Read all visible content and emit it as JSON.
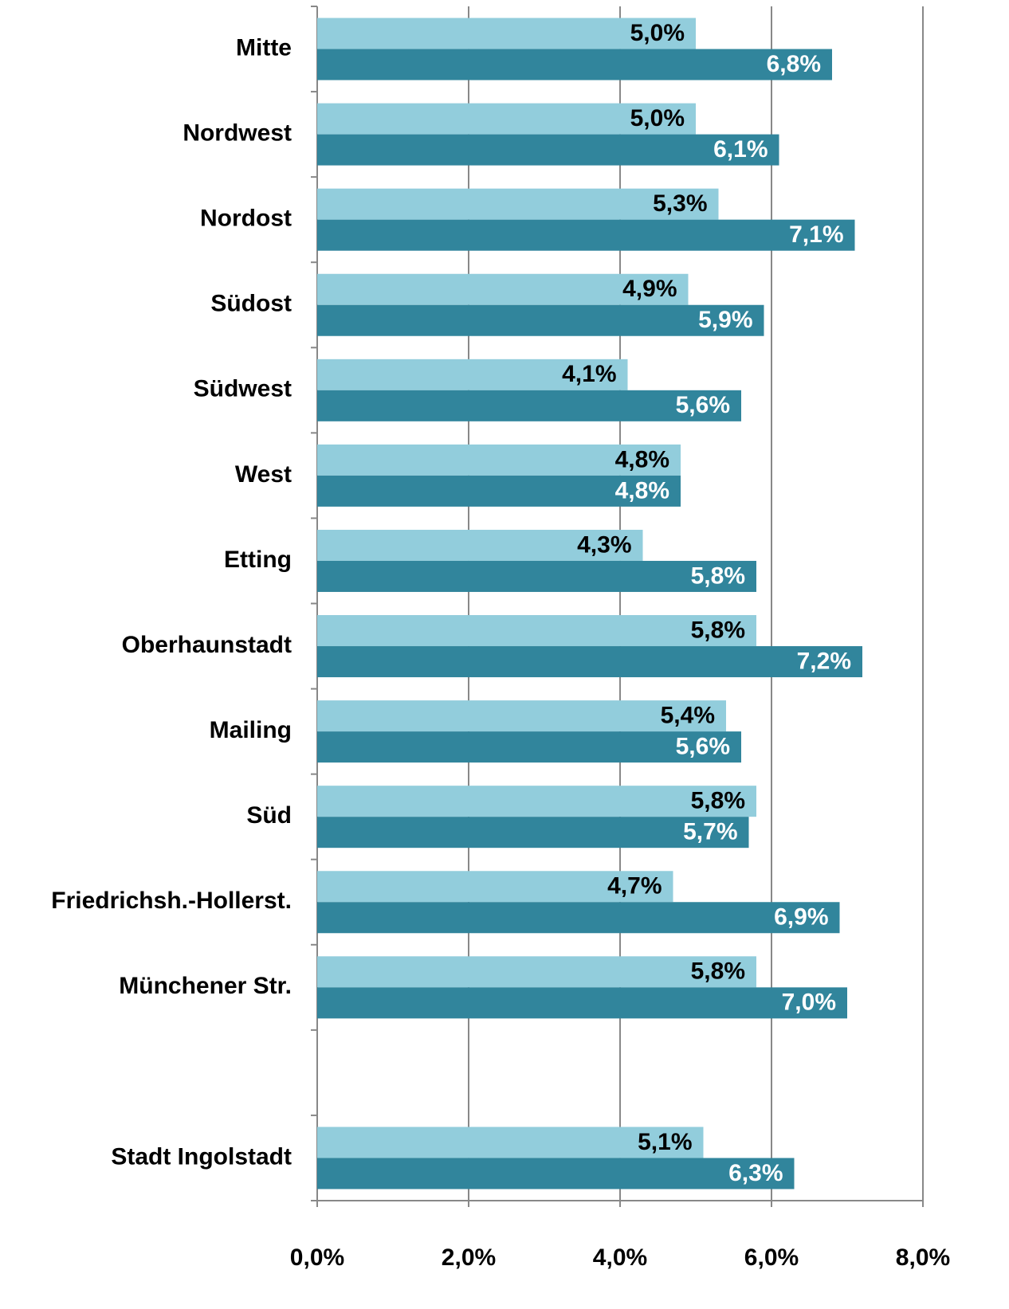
{
  "chart_data": {
    "type": "bar",
    "orientation": "horizontal",
    "categories": [
      "Mitte",
      "Nordwest",
      "Nordost",
      "Südost",
      "Südwest",
      "West",
      "Etting",
      "Oberhaunstadt",
      "Mailing",
      "Süd",
      "Friedrichsh.-Hollerst.",
      "Münchener Str.",
      null,
      "Stadt Ingolstadt"
    ],
    "series": [
      {
        "color": "#92cddc",
        "values": [
          5.0,
          5.0,
          5.3,
          4.9,
          4.1,
          4.8,
          4.3,
          5.8,
          5.4,
          5.8,
          4.7,
          5.8,
          null,
          5.1
        ],
        "value_labels": [
          "5,0%",
          "5,0%",
          "5,3%",
          "4,9%",
          "4,1%",
          "4,8%",
          "4,3%",
          "5,8%",
          "5,4%",
          "5,8%",
          "4,7%",
          "5,8%",
          null,
          "5,1%"
        ]
      },
      {
        "color": "#31859c",
        "values": [
          6.8,
          6.1,
          7.1,
          5.9,
          5.6,
          4.8,
          5.8,
          7.2,
          5.6,
          5.7,
          6.9,
          7.0,
          null,
          6.3
        ],
        "value_labels": [
          "6,8%",
          "6,1%",
          "7,1%",
          "5,9%",
          "5,6%",
          "4,8%",
          "5,8%",
          "7,2%",
          "5,6%",
          "5,7%",
          "6,9%",
          "7,0%",
          null,
          "6,3%"
        ]
      }
    ],
    "xlim": [
      0,
      8
    ],
    "xticks": [
      {
        "value": 0,
        "label": "0,0%"
      },
      {
        "value": 2,
        "label": "2,0%"
      },
      {
        "value": 4,
        "label": "4,0%"
      },
      {
        "value": 6,
        "label": "6,0%"
      },
      {
        "value": 8,
        "label": "8,0%"
      }
    ],
    "grid": true
  }
}
